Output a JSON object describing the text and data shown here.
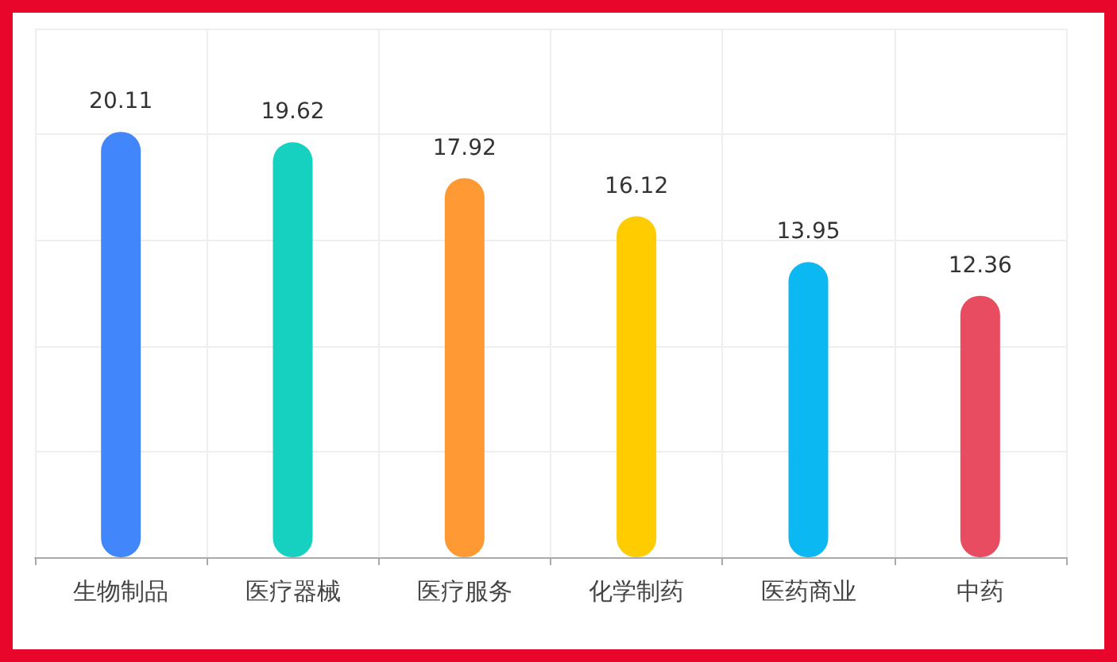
{
  "chart_data": {
    "type": "bar",
    "categories": [
      "生物制品",
      "医疗器械",
      "医疗服务",
      "化学制药",
      "医药商业",
      "中药"
    ],
    "values": [
      20.11,
      19.62,
      17.92,
      16.12,
      13.95,
      12.36
    ],
    "colors": [
      "#4286fb",
      "#16d0c0",
      "#ff9933",
      "#ffcc00",
      "#0bb8f2",
      "#e84c61"
    ],
    "ylim": [
      0,
      25
    ],
    "yticks": [
      {
        "value": 0,
        "label": null
      },
      {
        "value": 5,
        "label": null
      },
      {
        "value": 10,
        "label": null
      },
      {
        "value": 15,
        "label": null
      },
      {
        "value": 20,
        "label": null
      },
      {
        "value": 25,
        "label": null
      }
    ],
    "grid": true,
    "tick_labels": "x",
    "data_labels": true
  }
}
